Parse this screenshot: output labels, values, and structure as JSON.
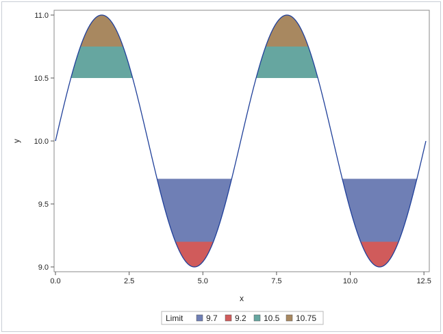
{
  "chart_data": {
    "type": "area",
    "title": "",
    "xlabel": "x",
    "ylabel": "y",
    "xlim": [
      0,
      12.566
    ],
    "ylim": [
      9.0,
      11.0
    ],
    "xticks": [
      "0.0",
      "2.5",
      "5.0",
      "7.5",
      "10.0",
      "12.5"
    ],
    "yticks": [
      "9.0",
      "9.5",
      "10.0",
      "10.5",
      "11.0"
    ],
    "curve": {
      "function": "y = 10 + sin(x)",
      "x_range": [
        0,
        12.566
      ],
      "color": "#1f3f99"
    },
    "legend": {
      "title": "Limit",
      "placement": "bottom",
      "entries": [
        {
          "label": "9.7",
          "color": "#6f7fb5"
        },
        {
          "label": "9.2",
          "color": "#d05b5b"
        },
        {
          "label": "10.5",
          "color": "#66a6a0"
        },
        {
          "label": "10.75",
          "color": "#a88860"
        }
      ]
    },
    "series": [
      {
        "name": "9.7",
        "type": "band",
        "limit": 9.7,
        "direction": "below",
        "color": "#6f7fb5"
      },
      {
        "name": "9.2",
        "type": "band",
        "limit": 9.2,
        "direction": "below",
        "color": "#d05b5b"
      },
      {
        "name": "10.5",
        "type": "band",
        "limit": 10.5,
        "upper": 10.75,
        "direction": "above",
        "color": "#66a6a0"
      },
      {
        "name": "10.75",
        "type": "band",
        "limit": 10.75,
        "direction": "above",
        "color": "#a88860"
      }
    ],
    "grid": false
  }
}
